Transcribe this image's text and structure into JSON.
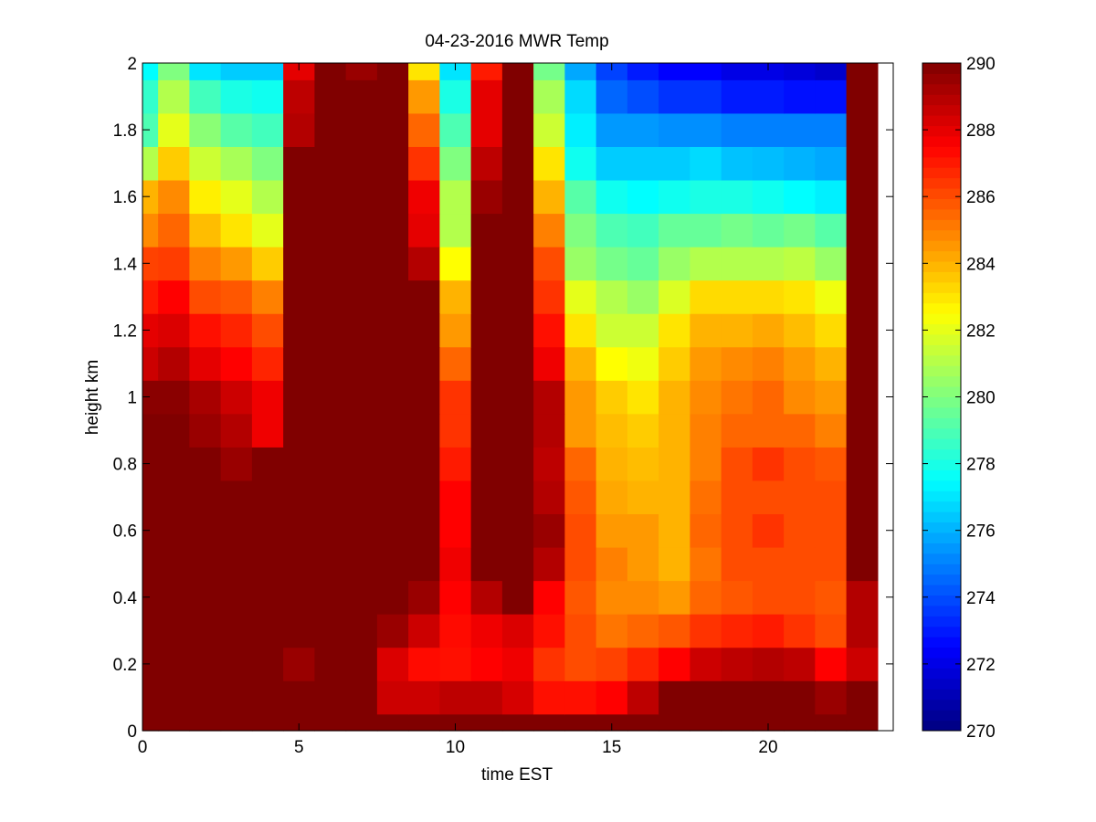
{
  "chart_data": {
    "type": "heatmap",
    "title": "04-23-2016 MWR Temp",
    "xlabel": "time EST",
    "ylabel": "height km",
    "xlim": [
      0,
      24
    ],
    "ylim": [
      0,
      2
    ],
    "x_ticks": [
      0,
      5,
      10,
      15,
      20
    ],
    "y_ticks": [
      0,
      0.2,
      0.4,
      0.6,
      0.8,
      1,
      1.2,
      1.4,
      1.6,
      1.8,
      2
    ],
    "colormap": "jet",
    "clim": [
      270,
      290
    ],
    "colorbar_ticks": [
      270,
      272,
      274,
      276,
      278,
      280,
      282,
      284,
      286,
      288,
      290
    ],
    "colorbar_position": "right",
    "x_centers": [
      0,
      1,
      2,
      3,
      4,
      5,
      6,
      7,
      8,
      9,
      10,
      11,
      12,
      13,
      14,
      15,
      16,
      17,
      18,
      19,
      20,
      21,
      22,
      23
    ],
    "y_levels": [
      0,
      0.1,
      0.2,
      0.3,
      0.4,
      0.5,
      0.6,
      0.7,
      0.8,
      0.9,
      1.0,
      1.1,
      1.2,
      1.3,
      1.4,
      1.5,
      1.6,
      1.7,
      1.8,
      1.9,
      2.0
    ],
    "values": [
      [
        290,
        290,
        290,
        290,
        290,
        290,
        290,
        290,
        290,
        290,
        290,
        290,
        290,
        290,
        290,
        290,
        290,
        290,
        290,
        290,
        290,
        290,
        290,
        290
      ],
      [
        290,
        290,
        290,
        290,
        290,
        290,
        290,
        290,
        288.5,
        288.5,
        288.8,
        288.8,
        288.3,
        287.2,
        287.2,
        287.5,
        288.8,
        290,
        290,
        290,
        290,
        290,
        289.5,
        290
      ],
      [
        290,
        290,
        290,
        290,
        290,
        289.5,
        290,
        290,
        288.2,
        287.3,
        287.2,
        287.5,
        287.8,
        286.5,
        286.0,
        286.2,
        286.8,
        287.5,
        288.5,
        288.8,
        289.0,
        288.8,
        287.5,
        288.5
      ],
      [
        290,
        290,
        290,
        290,
        290,
        290,
        290,
        290,
        289.5,
        288.5,
        287.3,
        287.8,
        288.2,
        287.2,
        286.0,
        285.2,
        285.5,
        285.8,
        286.5,
        286.8,
        287.0,
        286.5,
        286.0,
        289.0
      ],
      [
        290,
        290,
        290,
        290,
        290,
        290,
        290,
        290,
        290,
        289.5,
        287.5,
        289.0,
        290,
        287.5,
        285.8,
        284.8,
        284.8,
        284.5,
        285.5,
        285.8,
        286.0,
        286.0,
        285.8,
        289.0
      ],
      [
        290,
        290,
        290,
        290,
        290,
        290,
        290,
        290,
        290,
        290,
        287.8,
        290,
        290,
        289.0,
        286.0,
        285.0,
        284.5,
        284.0,
        285.2,
        286.0,
        286.0,
        286.0,
        286.0,
        290
      ],
      [
        290,
        290,
        290,
        290,
        290,
        290,
        290,
        290,
        290,
        290,
        287.5,
        290,
        290,
        289.5,
        286.0,
        284.5,
        284.5,
        284.0,
        285.5,
        286.0,
        286.5,
        286.0,
        286.0,
        290
      ],
      [
        290,
        290,
        290,
        290,
        290,
        290,
        290,
        290,
        290,
        290,
        287.5,
        290,
        290,
        289.0,
        285.8,
        284.2,
        284.0,
        284.0,
        285.3,
        286.0,
        286.0,
        286.0,
        286.0,
        290
      ],
      [
        290,
        290,
        290,
        289.5,
        290,
        290,
        290,
        290,
        290,
        290,
        287.0,
        290,
        290,
        288.8,
        285.5,
        284.0,
        283.8,
        284.0,
        285.0,
        286.0,
        286.5,
        286.0,
        285.8,
        290
      ],
      [
        290,
        290,
        289.5,
        289.0,
        287.8,
        290,
        290,
        290,
        290,
        290,
        286.5,
        290,
        290,
        289.0,
        284.5,
        283.8,
        283.5,
        284.0,
        285.0,
        285.5,
        285.5,
        285.5,
        285.0,
        290
      ],
      [
        289.8,
        289.8,
        289.2,
        288.5,
        287.8,
        290,
        290,
        290,
        290,
        290,
        286.5,
        290,
        290,
        289.0,
        284.5,
        283.5,
        283.0,
        284.0,
        284.8,
        285.2,
        285.5,
        284.8,
        284.5,
        290
      ],
      [
        288.5,
        289.0,
        288.0,
        287.5,
        286.8,
        290,
        290,
        290,
        290,
        290,
        285.5,
        290,
        290,
        287.8,
        284.0,
        282.5,
        282.2,
        283.5,
        284.5,
        284.8,
        285.0,
        284.5,
        284.0,
        290
      ],
      [
        288.0,
        288.2,
        287.2,
        286.8,
        286.0,
        290,
        290,
        290,
        290,
        290,
        284.5,
        290,
        290,
        287.2,
        283.0,
        281.5,
        281.5,
        283.0,
        284.0,
        284.0,
        284.2,
        283.8,
        283.2,
        290
      ],
      [
        287.0,
        287.5,
        286.0,
        285.8,
        285.0,
        290,
        290,
        290,
        290,
        290,
        284.0,
        290,
        290,
        286.5,
        282.0,
        281.0,
        280.5,
        281.8,
        283.2,
        283.2,
        283.2,
        283.0,
        282.2,
        290
      ],
      [
        286.2,
        286.3,
        285.0,
        284.5,
        283.5,
        290,
        290,
        290,
        290,
        289.0,
        282.5,
        290,
        290,
        286.0,
        280.5,
        279.8,
        279.5,
        280.5,
        281.0,
        281.0,
        281.0,
        281.2,
        280.5,
        290
      ],
      [
        284.8,
        285.5,
        283.8,
        283.0,
        282.0,
        290,
        290,
        290,
        290,
        288.0,
        281.0,
        290,
        290,
        285.0,
        280.0,
        279.0,
        278.8,
        279.5,
        279.5,
        279.8,
        279.5,
        279.8,
        279.2,
        290
      ],
      [
        284.0,
        284.8,
        282.8,
        282.0,
        281.0,
        290,
        290,
        290,
        290,
        287.8,
        281.0,
        289.5,
        290,
        284.0,
        279.2,
        277.8,
        277.5,
        277.8,
        278.0,
        278.0,
        277.8,
        277.5,
        277.2,
        290
      ],
      [
        281.0,
        283.5,
        281.5,
        280.8,
        280.0,
        290,
        290,
        290,
        290,
        286.5,
        280.0,
        288.8,
        290,
        283.0,
        277.8,
        276.5,
        276.5,
        276.5,
        276.8,
        276.3,
        276.2,
        276.0,
        275.8,
        290
      ],
      [
        279.0,
        282.0,
        280.2,
        279.2,
        278.8,
        289.0,
        290,
        290,
        290,
        285.5,
        279.0,
        288.0,
        290,
        281.5,
        277.2,
        275.5,
        275.5,
        275.3,
        275.3,
        275.0,
        275.0,
        275.0,
        275.0,
        290
      ],
      [
        278.5,
        281.0,
        278.8,
        278.0,
        277.8,
        288.8,
        290,
        290,
        290,
        284.5,
        278.0,
        288.0,
        290,
        280.8,
        276.8,
        274.5,
        274.0,
        273.5,
        273.5,
        273.0,
        273.0,
        272.8,
        272.8,
        290
      ],
      [
        277.5,
        280.0,
        277.0,
        276.5,
        276.5,
        288.0,
        290,
        289.5,
        290,
        283.0,
        277.0,
        287.0,
        290,
        279.8,
        275.8,
        273.8,
        273.0,
        272.5,
        272.5,
        272.0,
        272.0,
        271.8,
        271.5,
        290
      ]
    ]
  }
}
